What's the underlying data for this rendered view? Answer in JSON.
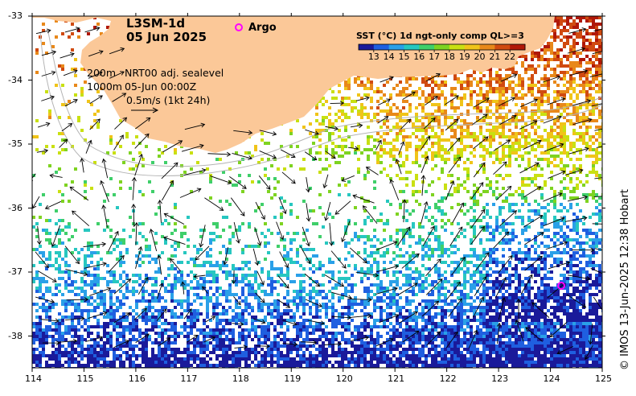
{
  "map": {
    "product": "L3SM-1d",
    "date": "05 Jun 2025",
    "argo_label": "Argo",
    "contour_labels": [
      "200m",
      "1000m"
    ],
    "currents_label": "NRT00 adj. sealevel",
    "currents_time": "05-Jun 00:00Z",
    "scale_label": "0.5m/s (1kt 24h)",
    "credit": "© IMOS 13-Jun-2025 12:38 Hobart",
    "colorbar": {
      "title": "SST (°C) 1d ngt-only comp QL>=3",
      "ticks": [
        "13",
        "14",
        "15",
        "16",
        "17",
        "18",
        "19",
        "20",
        "21",
        "22"
      ],
      "colors": [
        "#1a1a9a",
        "#1f5fe0",
        "#2aa0e8",
        "#27c7c0",
        "#3fcf6a",
        "#7ed321",
        "#c9e012",
        "#f0c419",
        "#e8881a",
        "#d04a10",
        "#b01808"
      ]
    },
    "lon_ticks": [
      "114",
      "115",
      "116",
      "117",
      "118",
      "119",
      "120",
      "121",
      "122",
      "123",
      "124",
      "125"
    ],
    "lat_ticks": [
      "-33",
      "-34",
      "-35",
      "-36",
      "-37",
      "-38"
    ],
    "colors": {
      "land": "#fbc898",
      "argo_marker": "#ff00ff"
    }
  }
}
